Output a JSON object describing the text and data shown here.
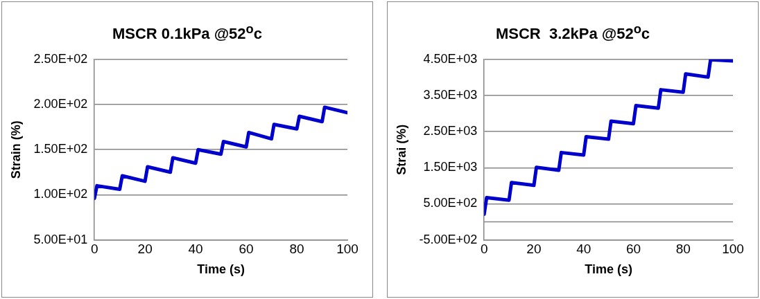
{
  "chart_data": [
    {
      "type": "line",
      "title": "MSCR 0.1kPa @52$^{o}$c",
      "xlabel": "Time (s)",
      "ylabel": "Strain (%)",
      "series": [
        {
          "color": "#0000cc",
          "x": [
            0,
            1,
            10,
            11,
            20,
            21,
            30,
            31,
            40,
            41,
            50,
            51,
            60,
            61,
            70,
            71,
            80,
            81,
            90,
            91,
            100
          ],
          "values": [
            96,
            110,
            106,
            121,
            115,
            131,
            125,
            141,
            135,
            150,
            145,
            159,
            153,
            169,
            162,
            178,
            173,
            187,
            181,
            197,
            191
          ]
        }
      ],
      "xlim": [
        0,
        100
      ],
      "xticks": [
        0,
        20,
        40,
        60,
        80,
        100
      ],
      "ylim": [
        50,
        250
      ],
      "yticks": [
        {
          "value": 50,
          "label": "5.00E+01"
        },
        {
          "value": 100,
          "label": "1.00E+02"
        },
        {
          "value": 150,
          "label": "1.50E+02"
        },
        {
          "value": 200,
          "label": "2.00E+02"
        },
        {
          "value": 250,
          "label": "2.50E+02"
        }
      ],
      "grid": "y",
      "legend": false,
      "line_style": "solid"
    },
    {
      "type": "line",
      "title": "MSCR  3.2kPa @52$^{o}$c",
      "xlabel": "Time (s)",
      "ylabel": "Strai (%)",
      "series": [
        {
          "color": "#0000cc",
          "x": [
            0,
            1,
            10,
            11,
            20,
            21,
            30,
            31,
            40,
            41,
            50,
            51,
            60,
            61,
            70,
            71,
            80,
            81,
            90,
            91,
            100
          ],
          "values": [
            210,
            670,
            600,
            1090,
            1010,
            1510,
            1430,
            1920,
            1850,
            2360,
            2290,
            2790,
            2720,
            3220,
            3150,
            3660,
            3590,
            4100,
            4010,
            4490,
            4460
          ]
        }
      ],
      "xlim": [
        0,
        100
      ],
      "xticks": [
        0,
        20,
        40,
        60,
        80,
        100
      ],
      "ylim": [
        -500,
        4500
      ],
      "yticks": [
        {
          "value": -500,
          "label": "-5.00E+02"
        },
        {
          "value": 500,
          "label": "5.00E+02"
        },
        {
          "value": 1500,
          "label": "1.50E+03"
        },
        {
          "value": 2500,
          "label": "2.50E+03"
        },
        {
          "value": 3500,
          "label": "3.50E+03"
        },
        {
          "value": 4500,
          "label": "4.50E+03"
        }
      ],
      "ref_lines": [
        {
          "axis": "y",
          "value": 0,
          "color": "#868686"
        }
      ],
      "grid": "y",
      "legend": false,
      "line_style": "solid"
    }
  ]
}
